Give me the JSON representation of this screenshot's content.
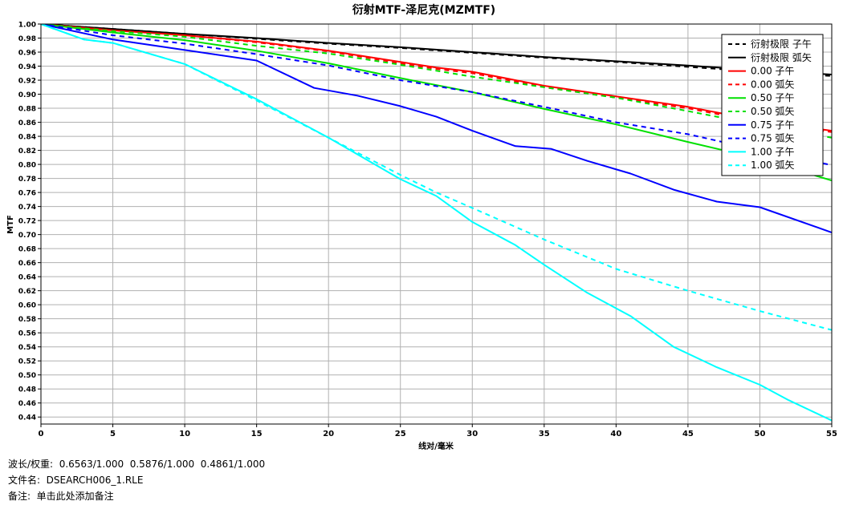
{
  "chart_data": {
    "type": "line",
    "title": "衍射MTF-泽尼克(MZMTF)",
    "xlabel": "线对/毫米",
    "ylabel": "MTF",
    "xlim": [
      0,
      55
    ],
    "ylim": [
      0.43,
      1.0
    ],
    "x_ticks": [
      "0",
      "5",
      "10",
      "15",
      "20",
      "25",
      "30",
      "35",
      "40",
      "45",
      "50",
      "55"
    ],
    "y_ticks": [
      "1.00",
      "0.98",
      "0.96",
      "0.94",
      "0.92",
      "0.90",
      "0.88",
      "0.86",
      "0.84",
      "0.82",
      "0.80",
      "0.78",
      "0.76",
      "0.74",
      "0.72",
      "0.70",
      "0.68",
      "0.66",
      "0.64",
      "0.62",
      "0.60",
      "0.58",
      "0.56",
      "0.54",
      "0.52",
      "0.50",
      "0.48",
      "0.46",
      "0.44"
    ],
    "grid": true,
    "legend_position": "top-right",
    "series": [
      {
        "name": "衍射极限 子午",
        "color": "#000000",
        "dash": true,
        "x": [
          0,
          5,
          10,
          15,
          20,
          25,
          30,
          35,
          40,
          45,
          50,
          55
        ],
        "y": [
          1.0,
          0.993,
          0.986,
          0.979,
          0.972,
          0.966,
          0.959,
          0.952,
          0.946,
          0.939,
          0.932,
          0.926
        ]
      },
      {
        "name": "衍射极限 弧矢",
        "color": "#000000",
        "dash": false,
        "x": [
          0,
          5,
          10,
          15,
          20,
          25,
          30,
          35,
          40,
          45,
          50,
          55
        ],
        "y": [
          1.0,
          0.993,
          0.986,
          0.98,
          0.973,
          0.967,
          0.96,
          0.953,
          0.947,
          0.941,
          0.934,
          0.928
        ]
      },
      {
        "name": "0.00 子午",
        "color": "#ff0000",
        "dash": false,
        "x": [
          0,
          5,
          10,
          15,
          20,
          25,
          27.5,
          30,
          35,
          40,
          45,
          50,
          55
        ],
        "y": [
          1.0,
          0.991,
          0.984,
          0.975,
          0.962,
          0.946,
          0.938,
          0.932,
          0.912,
          0.897,
          0.882,
          0.862,
          0.848
        ]
      },
      {
        "name": "0.00 弧矢",
        "color": "#ff0000",
        "dash": true,
        "x": [
          0,
          5,
          10,
          15,
          20,
          25,
          27.5,
          30,
          35,
          40,
          45,
          50,
          55
        ],
        "y": [
          1.0,
          0.991,
          0.984,
          0.974,
          0.961,
          0.944,
          0.936,
          0.93,
          0.91,
          0.895,
          0.88,
          0.86,
          0.846
        ]
      },
      {
        "name": "0.50 子午",
        "color": "#00e000",
        "dash": false,
        "x": [
          0,
          5,
          10,
          15,
          20,
          25,
          30,
          35,
          40,
          45,
          50,
          55
        ],
        "y": [
          1.0,
          0.988,
          0.977,
          0.962,
          0.944,
          0.923,
          0.903,
          0.879,
          0.857,
          0.832,
          0.808,
          0.777
        ]
      },
      {
        "name": "0.50 弧矢",
        "color": "#00e000",
        "dash": true,
        "x": [
          0,
          5,
          10,
          15,
          20,
          25,
          30,
          35,
          40,
          45,
          50,
          55
        ],
        "y": [
          1.0,
          0.99,
          0.982,
          0.969,
          0.958,
          0.942,
          0.925,
          0.91,
          0.895,
          0.876,
          0.856,
          0.838
        ]
      },
      {
        "name": "0.75 子午",
        "color": "#0000ff",
        "dash": false,
        "x": [
          0,
          5,
          10,
          15,
          19,
          22,
          25,
          27.5,
          30,
          33,
          35.5,
          38,
          41,
          44,
          47,
          50,
          55
        ],
        "y": [
          1.0,
          0.978,
          0.963,
          0.948,
          0.909,
          0.898,
          0.883,
          0.868,
          0.848,
          0.826,
          0.822,
          0.805,
          0.787,
          0.764,
          0.747,
          0.739,
          0.703
        ]
      },
      {
        "name": "0.75 弧矢",
        "color": "#0000ff",
        "dash": true,
        "x": [
          0,
          5,
          10,
          15,
          20,
          25,
          30,
          35,
          40,
          45,
          50,
          55
        ],
        "y": [
          1.0,
          0.984,
          0.972,
          0.957,
          0.941,
          0.92,
          0.903,
          0.882,
          0.86,
          0.843,
          0.82,
          0.799
        ]
      },
      {
        "name": "1.00 子午",
        "color": "#00ffff",
        "dash": false,
        "x": [
          0,
          3,
          5,
          10,
          15,
          20,
          25,
          27.5,
          30,
          33,
          35,
          38,
          41,
          44,
          47,
          50,
          52,
          55
        ],
        "y": [
          1.0,
          0.978,
          0.973,
          0.943,
          0.893,
          0.838,
          0.779,
          0.755,
          0.718,
          0.685,
          0.657,
          0.617,
          0.584,
          0.54,
          0.511,
          0.486,
          0.464,
          0.435
        ]
      },
      {
        "name": "1.00 弧矢",
        "color": "#00ffff",
        "dash": true,
        "x": [
          0,
          3,
          5,
          10,
          15,
          20,
          25,
          27.5,
          30,
          35,
          40,
          45,
          50,
          55
        ],
        "y": [
          1.0,
          0.978,
          0.973,
          0.943,
          0.891,
          0.838,
          0.785,
          0.76,
          0.738,
          0.693,
          0.651,
          0.62,
          0.591,
          0.564
        ]
      }
    ]
  },
  "footer": {
    "wavelength": "波长/权重:  0.6563/1.000  0.5876/1.000  0.4861/1.000",
    "filename": "文件名:  DSEARCH006_1.RLE",
    "note": "备注:  单击此处添加备注"
  }
}
